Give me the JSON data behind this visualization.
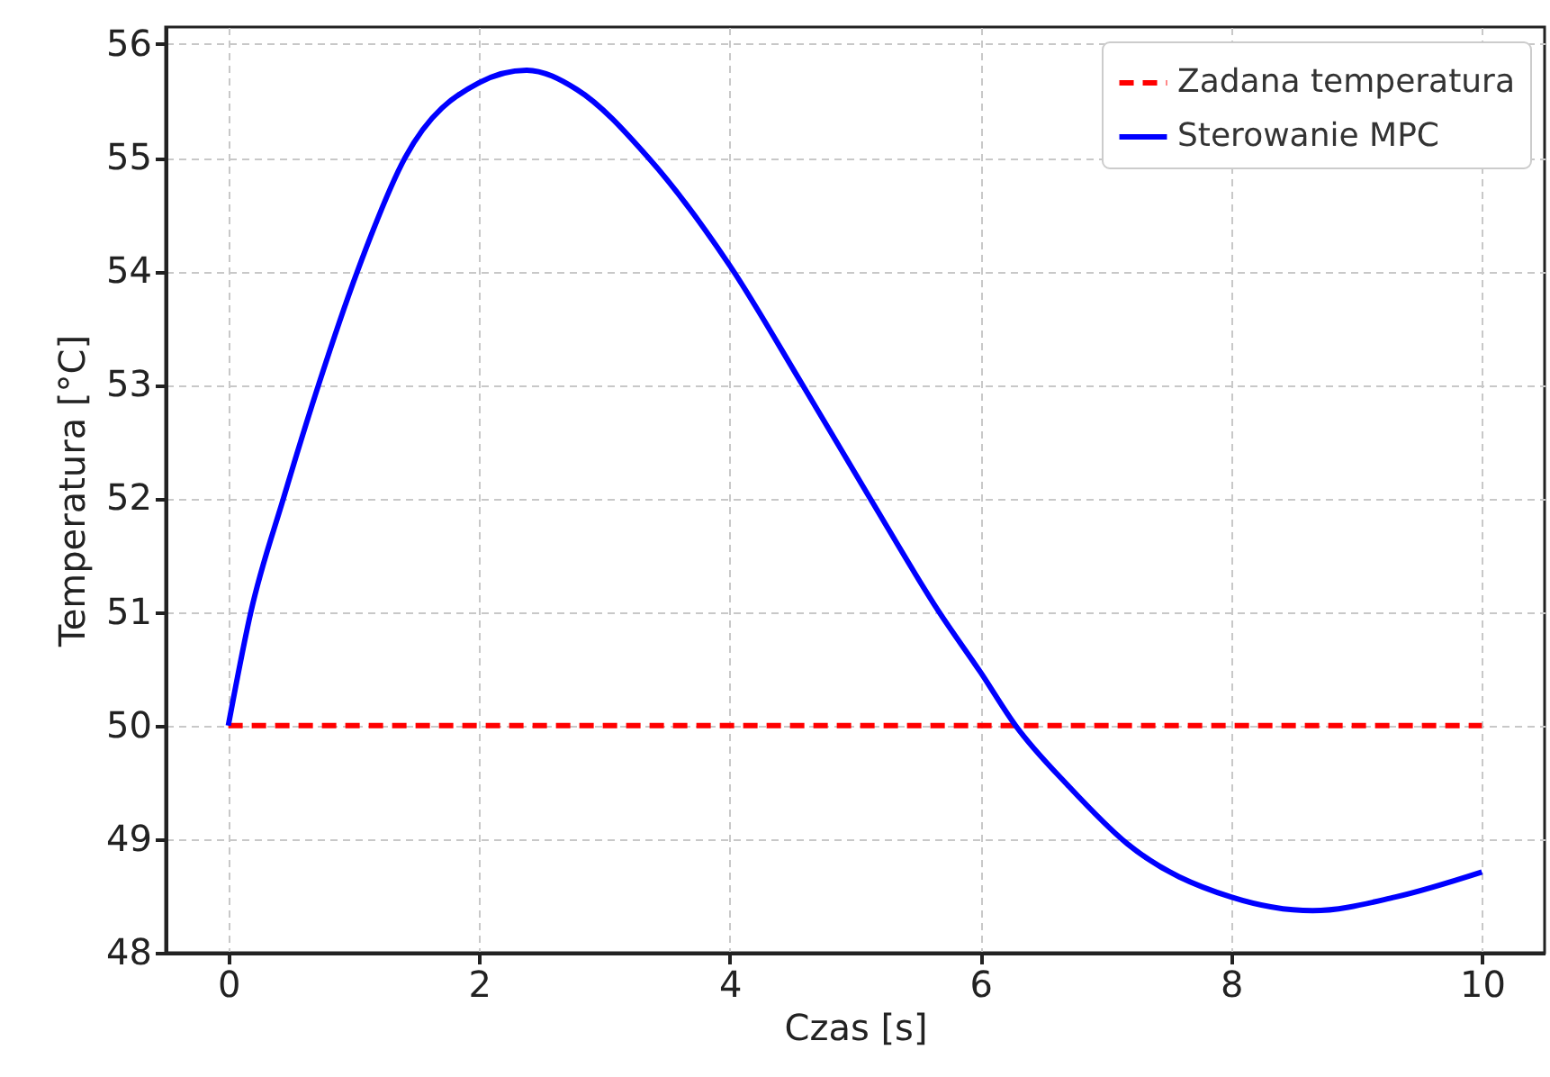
{
  "chart_data": {
    "type": "line",
    "xlabel": "Czas [s]",
    "ylabel": "Temperatura [°C]",
    "xlim": [
      -0.5,
      10.5
    ],
    "xticks": [
      0,
      2,
      4,
      6,
      8,
      10
    ],
    "ylim": [
      48,
      56.15
    ],
    "yticks": [
      48,
      49,
      50,
      51,
      52,
      53,
      54,
      55,
      56
    ],
    "grid": true,
    "legend": "top right",
    "series": [
      {
        "name": "Zadana temperatura",
        "color": "#ff0000",
        "line_style": "dashed",
        "x": [
          0,
          10
        ],
        "values": [
          50,
          50
        ]
      },
      {
        "name": "Sterowanie MPC",
        "color": "#0000ff",
        "line_style": "solid",
        "x": [
          0,
          0.18,
          0.44,
          0.72,
          1.03,
          1.41,
          2,
          2.38,
          2.78,
          3.35,
          4,
          4.58,
          5.12,
          5.67,
          6,
          6.28,
          6.7,
          7.17,
          8,
          8.65,
          9.31,
          10
        ],
        "values": [
          50,
          51.0,
          52.0,
          53.0,
          54.0,
          55.0,
          55.66,
          55.77,
          55.6,
          55.0,
          54.05,
          53.0,
          52.0,
          51.0,
          50.47,
          50,
          49.47,
          48.96,
          48.49,
          48.37,
          48.49,
          48.71
        ]
      }
    ]
  }
}
